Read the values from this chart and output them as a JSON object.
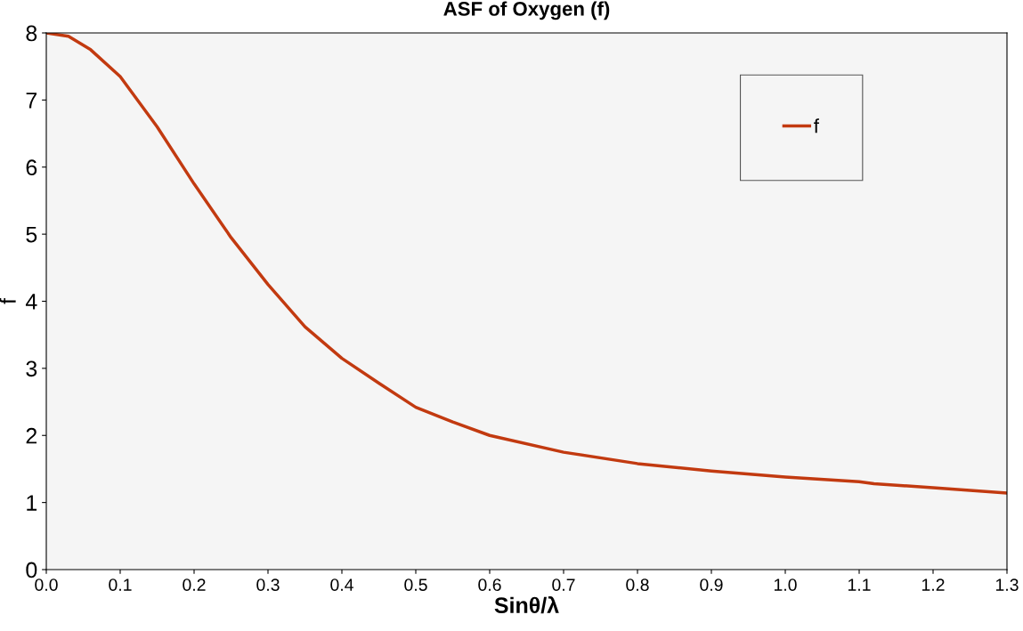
{
  "chart_data": {
    "type": "line",
    "title": "ASF of Oxygen (f)",
    "xlabel": "Sinθ/λ",
    "ylabel": "f",
    "x": [
      0,
      0.03,
      0.06,
      0.1,
      0.15,
      0.2,
      0.25,
      0.3,
      0.35,
      0.4,
      0.45,
      0.5,
      0.55,
      0.6,
      0.7,
      0.8,
      0.9,
      1.0,
      1.1,
      1.12,
      1.2,
      1.3
    ],
    "series": [
      {
        "name": "f",
        "color": "#c23a10",
        "values": [
          8.0,
          7.95,
          7.75,
          7.35,
          6.6,
          5.75,
          4.95,
          4.25,
          3.62,
          3.15,
          2.78,
          2.42,
          2.2,
          2.0,
          1.75,
          1.58,
          1.47,
          1.38,
          1.31,
          1.28,
          1.22,
          1.14
        ]
      }
    ],
    "xlim": [
      0,
      1.3
    ],
    "xticks": [
      {
        "value": 0,
        "label": "0.0"
      },
      0.1,
      0.2,
      0.3,
      0.4,
      0.5,
      0.6,
      0.7,
      0.8,
      0.9,
      {
        "value": 1.0,
        "label": "1.0"
      },
      1.1,
      1.2,
      1.3
    ],
    "ylim": [
      0,
      8
    ],
    "yticks": [
      0,
      1,
      2,
      3,
      4,
      5,
      6,
      7,
      8
    ],
    "grid": false,
    "legend": "top right",
    "marker": "none",
    "line_style": "solid"
  }
}
